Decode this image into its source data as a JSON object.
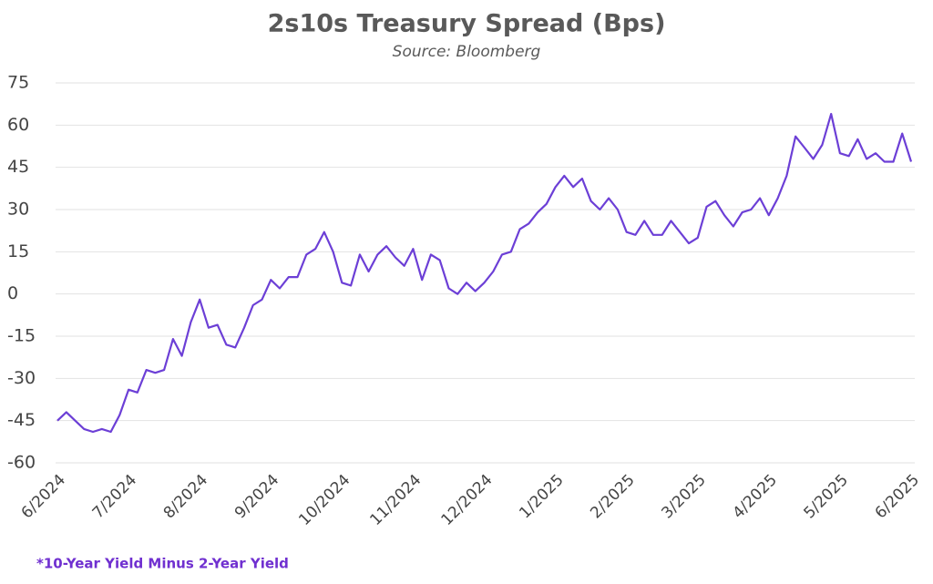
{
  "chart_data": {
    "type": "line",
    "title": "2s10s Treasury Spread (Bps)",
    "subtitle": "Source: Bloomberg",
    "annotation": "*10-Year Yield Minus 2-Year Yield",
    "categories": [
      "6/2024",
      null,
      null,
      null,
      null,
      null,
      null,
      null,
      "7/2024",
      null,
      null,
      null,
      null,
      null,
      null,
      null,
      "8/2024",
      null,
      null,
      null,
      null,
      null,
      null,
      null,
      "9/2024",
      null,
      null,
      null,
      null,
      null,
      null,
      null,
      "10/2024",
      null,
      null,
      null,
      null,
      null,
      null,
      null,
      "11/2024",
      null,
      null,
      null,
      null,
      null,
      null,
      null,
      "12/2024",
      null,
      null,
      null,
      null,
      null,
      null,
      null,
      "1/2025",
      null,
      null,
      null,
      null,
      null,
      null,
      null,
      "2/2025",
      null,
      null,
      null,
      null,
      null,
      null,
      null,
      "3/2025",
      null,
      null,
      null,
      null,
      null,
      null,
      null,
      "4/2025",
      null,
      null,
      null,
      null,
      null,
      null,
      null,
      "5/2025",
      null,
      null,
      null,
      null,
      null,
      null,
      null,
      "6/2025"
    ],
    "series": [
      {
        "name": "2s10s Spread",
        "color": "#6c3fd6",
        "values": [
          -45,
          -42,
          -45,
          -48,
          -49,
          -48,
          -49,
          -43,
          -34,
          -35,
          -27,
          -28,
          -27,
          -16,
          -22,
          -10,
          -2,
          -12,
          -11,
          -18,
          -19,
          -12,
          -4,
          -2,
          5,
          2,
          6,
          6,
          14,
          16,
          22,
          15,
          4,
          3,
          14,
          8,
          14,
          17,
          13,
          10,
          16,
          5,
          14,
          12,
          2,
          0,
          4,
          1,
          4,
          8,
          14,
          15,
          23,
          25,
          29,
          32,
          38,
          42,
          38,
          41,
          33,
          30,
          34,
          30,
          22,
          21,
          26,
          21,
          21,
          26,
          22,
          18,
          20,
          31,
          33,
          28,
          24,
          29,
          30,
          34,
          28,
          34,
          42,
          56,
          52,
          48,
          53,
          64,
          50,
          49,
          55,
          48,
          50,
          47,
          47,
          57,
          47
        ]
      }
    ],
    "ylim": [
      -60,
      75
    ],
    "yticks": [
      -60,
      -45,
      -30,
      -15,
      0,
      15,
      30,
      45,
      60,
      75
    ],
    "grid": true
  }
}
